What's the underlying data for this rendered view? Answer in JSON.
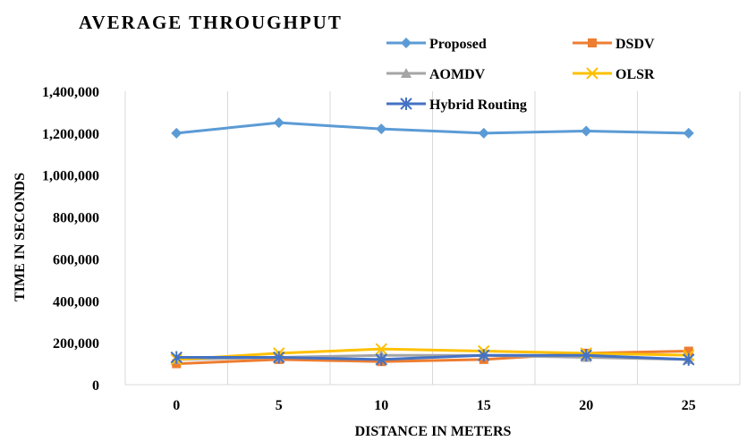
{
  "chart_data": {
    "type": "line",
    "title": "AVERAGE THROUGHPUT",
    "xlabel": "DISTANCE IN METERS",
    "ylabel": "TIME IN SECONDS",
    "categories": [
      "0",
      "5",
      "10",
      "15",
      "20",
      "25"
    ],
    "y_ticks": [
      "0",
      "200,000",
      "400,000",
      "600,000",
      "800,000",
      "1,000,000",
      "1,200,000",
      "1,400,000"
    ],
    "ylim": [
      0,
      1400000
    ],
    "grid": "vertical",
    "legend_position": "top-right",
    "series": [
      {
        "name": "Proposed",
        "color": "#5B9BD5",
        "marker": "diamond",
        "values": [
          1200000,
          1250000,
          1220000,
          1200000,
          1210000,
          1200000
        ]
      },
      {
        "name": "DSDV",
        "color": "#ED7D31",
        "marker": "square",
        "values": [
          100000,
          120000,
          110000,
          120000,
          150000,
          160000
        ]
      },
      {
        "name": "AOMDV",
        "color": "#A5A5A5",
        "marker": "triangle",
        "values": [
          120000,
          130000,
          140000,
          140000,
          130000,
          120000
        ]
      },
      {
        "name": "OLSR",
        "color": "#FFC000",
        "marker": "x",
        "values": [
          120000,
          150000,
          170000,
          160000,
          150000,
          140000
        ]
      },
      {
        "name": "Hybrid Routing",
        "color": "#4472C4",
        "marker": "asterisk",
        "values": [
          130000,
          130000,
          120000,
          140000,
          140000,
          120000
        ]
      }
    ]
  }
}
